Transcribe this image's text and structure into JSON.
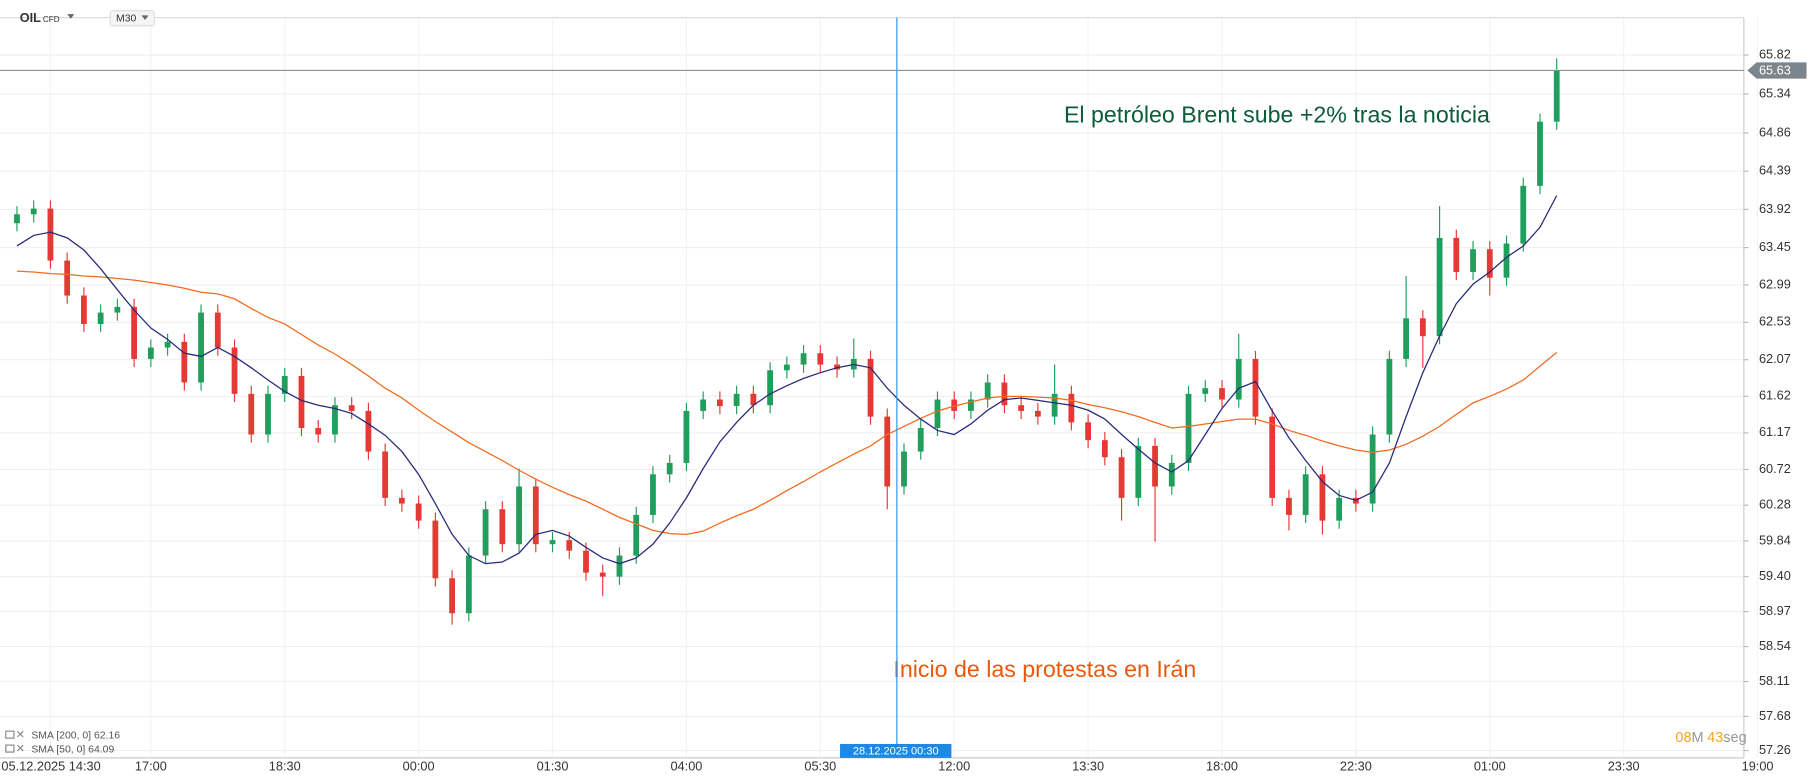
{
  "chart_data": {
    "type": "candlestick",
    "symbol": "OIL",
    "instrument_type": "CFD",
    "timeframe": "M30",
    "categories": [
      null,
      null,
      "05.12.2025 14:30",
      null,
      null,
      null,
      null,
      null,
      "17:00",
      null,
      null,
      null,
      null,
      null,
      null,
      null,
      "18:30",
      null,
      null,
      null,
      null,
      null,
      null,
      null,
      "00:00",
      null,
      null,
      null,
      null,
      null,
      null,
      null,
      "01:30",
      null,
      null,
      null,
      null,
      null,
      null,
      null,
      "04:00",
      null,
      null,
      null,
      null,
      null,
      null,
      null,
      "05:30",
      null,
      null,
      null,
      null,
      null,
      null,
      null,
      "12:00",
      null,
      null,
      null,
      null,
      null,
      null,
      null,
      "13:30",
      null,
      null,
      null,
      null,
      null,
      null,
      null,
      "18:00",
      null,
      null,
      null,
      null,
      null,
      null,
      null,
      "22:30",
      null,
      null,
      null,
      null,
      null,
      null,
      null,
      "01:00",
      null,
      null,
      null,
      null,
      null,
      null,
      null,
      "23:30",
      null,
      null,
      null,
      null,
      null,
      null,
      null,
      "19:00"
    ],
    "open": [
      63.75,
      63.86,
      63.93,
      63.29,
      62.86,
      62.51,
      62.65,
      62.72,
      62.08,
      62.22,
      62.29,
      61.79,
      62.65,
      62.22,
      61.65,
      61.15,
      61.65,
      61.87,
      61.23,
      61.15,
      61.51,
      61.44,
      60.94,
      60.37,
      60.3,
      60.09,
      59.38,
      58.95,
      59.66,
      60.23,
      59.8,
      60.51,
      59.8,
      59.85,
      59.72,
      59.45,
      59.4,
      59.66,
      60.16,
      60.66,
      60.8,
      61.44,
      61.58,
      61.5,
      61.65,
      61.51,
      61.94,
      62.01,
      62.15,
      62.01,
      61.95,
      62.08,
      61.37,
      60.51,
      60.94,
      61.23,
      61.58,
      61.44,
      61.58,
      61.79,
      61.51,
      61.44,
      61.37,
      61.65,
      61.3,
      61.08,
      60.87,
      60.37,
      61.01,
      60.51,
      60.8,
      61.65,
      61.72,
      61.58,
      62.08,
      61.37,
      60.37,
      60.16,
      60.66,
      60.09,
      60.37,
      60.3,
      61.15,
      62.08,
      62.58,
      62.36,
      63.57,
      63.15,
      63.43,
      63.08,
      63.5,
      64.21,
      65.0,
      null,
      null,
      null,
      null,
      null,
      null,
      null,
      null,
      null,
      null,
      null,
      null
    ],
    "high": [
      63.96,
      64.03,
      64.03,
      63.39,
      62.96,
      62.75,
      62.82,
      62.82,
      62.32,
      62.39,
      62.39,
      62.75,
      62.75,
      62.32,
      61.75,
      61.75,
      61.97,
      61.97,
      61.33,
      61.61,
      61.61,
      61.54,
      61.04,
      60.47,
      60.4,
      60.19,
      59.48,
      59.76,
      60.33,
      60.33,
      60.73,
      60.61,
      59.95,
      59.95,
      59.82,
      59.55,
      59.76,
      60.26,
      60.76,
      60.9,
      61.54,
      61.68,
      61.68,
      61.75,
      61.75,
      62.04,
      62.11,
      62.25,
      62.25,
      62.11,
      62.33,
      62.18,
      61.47,
      61.04,
      61.33,
      61.68,
      61.68,
      61.68,
      61.89,
      61.89,
      61.61,
      61.54,
      62.01,
      61.75,
      61.4,
      61.18,
      60.97,
      61.11,
      61.11,
      60.9,
      61.75,
      61.82,
      61.82,
      62.39,
      62.18,
      61.47,
      60.47,
      60.76,
      60.76,
      60.47,
      60.47,
      61.25,
      62.18,
      63.1,
      62.68,
      63.96,
      63.67,
      63.53,
      63.53,
      63.6,
      64.31,
      65.1,
      65.78,
      null,
      null,
      null,
      null,
      null,
      null,
      null,
      null,
      null,
      null,
      null,
      null
    ],
    "low": [
      63.65,
      63.76,
      63.19,
      62.76,
      62.41,
      62.41,
      62.55,
      61.98,
      61.98,
      62.12,
      61.69,
      61.69,
      62.12,
      61.55,
      61.05,
      61.05,
      61.55,
      61.13,
      61.05,
      61.05,
      61.34,
      60.84,
      60.27,
      60.2,
      59.99,
      59.28,
      58.81,
      58.85,
      59.56,
      59.7,
      59.7,
      59.7,
      59.7,
      59.62,
      59.35,
      59.16,
      59.3,
      59.56,
      60.06,
      60.56,
      60.7,
      61.34,
      61.4,
      61.4,
      61.41,
      61.41,
      61.84,
      61.91,
      61.91,
      61.85,
      61.85,
      61.27,
      60.23,
      60.41,
      60.84,
      61.13,
      61.34,
      61.34,
      61.48,
      61.41,
      61.34,
      61.27,
      61.27,
      61.2,
      60.98,
      60.77,
      60.09,
      60.27,
      59.83,
      60.41,
      60.7,
      61.55,
      61.48,
      61.48,
      61.27,
      60.27,
      59.97,
      60.06,
      59.92,
      59.99,
      60.2,
      60.2,
      61.05,
      61.98,
      61.97,
      62.26,
      63.05,
      63.05,
      62.86,
      62.98,
      63.4,
      64.11,
      64.9,
      null,
      null,
      null,
      null,
      null,
      null,
      null,
      null,
      null,
      null,
      null,
      null
    ],
    "close": [
      63.86,
      63.93,
      63.29,
      62.86,
      62.51,
      62.65,
      62.72,
      62.08,
      62.22,
      62.29,
      61.79,
      62.65,
      62.22,
      61.65,
      61.15,
      61.65,
      61.87,
      61.23,
      61.15,
      61.51,
      61.44,
      60.94,
      60.37,
      60.3,
      60.09,
      59.38,
      58.95,
      59.66,
      60.23,
      59.8,
      60.51,
      59.8,
      59.85,
      59.72,
      59.45,
      59.4,
      59.66,
      60.16,
      60.66,
      60.8,
      61.44,
      61.58,
      61.5,
      61.65,
      61.51,
      61.94,
      62.01,
      62.15,
      62.01,
      61.95,
      62.08,
      61.37,
      60.51,
      60.94,
      61.23,
      61.58,
      61.44,
      61.58,
      61.79,
      61.51,
      61.44,
      61.37,
      61.65,
      61.3,
      61.08,
      60.87,
      60.37,
      61.01,
      60.51,
      60.8,
      61.65,
      61.72,
      61.58,
      62.08,
      61.37,
      60.37,
      60.16,
      60.66,
      60.09,
      60.37,
      60.3,
      61.15,
      62.08,
      62.58,
      62.36,
      63.57,
      63.15,
      63.43,
      63.08,
      63.5,
      64.21,
      65.0,
      65.63,
      null,
      null,
      null,
      null,
      null,
      null,
      null,
      null,
      null,
      null,
      null,
      null
    ],
    "up_color": "#1f9e5c",
    "down_color": "#e53935",
    "series": [
      {
        "name": "SMA [200, 0] 62.16",
        "color": "#f26b21",
        "values": [
          63.16,
          63.15,
          63.13,
          63.12,
          63.1,
          63.09,
          63.07,
          63.05,
          63.02,
          62.99,
          62.95,
          62.9,
          62.88,
          62.82,
          62.7,
          62.59,
          62.51,
          62.38,
          62.25,
          62.14,
          62.01,
          61.87,
          61.72,
          61.6,
          61.45,
          61.31,
          61.18,
          61.05,
          60.94,
          60.83,
          60.71,
          60.6,
          60.5,
          60.41,
          60.33,
          60.23,
          60.13,
          60.05,
          59.97,
          59.93,
          59.92,
          59.96,
          60.06,
          60.15,
          60.23,
          60.34,
          60.46,
          60.57,
          60.69,
          60.8,
          60.91,
          61.01,
          61.15,
          61.25,
          61.35,
          61.44,
          61.5,
          61.55,
          61.6,
          61.62,
          61.62,
          61.61,
          61.6,
          61.57,
          61.52,
          61.48,
          61.43,
          61.37,
          61.3,
          61.23,
          61.25,
          61.28,
          61.31,
          61.34,
          61.34,
          61.28,
          61.2,
          61.14,
          61.07,
          61.01,
          60.96,
          60.93,
          60.96,
          61.03,
          61.13,
          61.25,
          61.4,
          61.54,
          61.62,
          61.71,
          61.82,
          61.99,
          62.16,
          null,
          null,
          null,
          null,
          null,
          null,
          null,
          null,
          null,
          null,
          null,
          null
        ]
      },
      {
        "name": "SMA [50, 0] 64.09",
        "color": "#2a2a7a",
        "values": [
          63.47,
          63.6,
          63.64,
          63.57,
          63.42,
          63.19,
          62.93,
          62.68,
          62.46,
          62.32,
          62.15,
          62.11,
          62.22,
          62.11,
          61.97,
          61.82,
          61.68,
          61.57,
          61.51,
          61.47,
          61.41,
          61.28,
          61.14,
          60.94,
          60.66,
          60.3,
          59.92,
          59.66,
          59.56,
          59.58,
          59.69,
          59.92,
          59.97,
          59.9,
          59.76,
          59.63,
          59.56,
          59.63,
          59.8,
          60.06,
          60.37,
          60.73,
          61.06,
          61.3,
          61.51,
          61.65,
          61.75,
          61.84,
          61.91,
          61.97,
          62.01,
          61.97,
          61.72,
          61.51,
          61.34,
          61.2,
          61.15,
          61.28,
          61.45,
          61.58,
          61.6,
          61.57,
          61.54,
          61.51,
          61.45,
          61.34,
          61.15,
          60.97,
          60.8,
          60.69,
          60.83,
          61.15,
          61.47,
          61.72,
          61.8,
          61.44,
          61.11,
          60.83,
          60.57,
          60.4,
          60.34,
          60.44,
          60.8,
          61.37,
          61.91,
          62.36,
          62.76,
          63.0,
          63.15,
          63.33,
          63.47,
          63.7,
          64.09,
          null,
          null,
          null,
          null,
          null,
          null,
          null,
          null,
          null,
          null,
          null,
          null
        ]
      }
    ],
    "ylim": [
      57.17,
      66.28
    ],
    "yticks": [
      65.82,
      65.34,
      64.86,
      64.39,
      63.92,
      63.45,
      62.99,
      62.53,
      62.07,
      61.62,
      61.17,
      60.72,
      60.28,
      59.84,
      {
        "value": 59.4,
        "label": "59.40"
      },
      58.97,
      58.54,
      58.11,
      57.68,
      57.26
    ],
    "grid": true,
    "last_price": 65.63,
    "crosshair_label": "28.12.2025 00:30",
    "annotations": [
      {
        "text": "El petróleo Brent sube +2% tras la noticia",
        "color": "#0b5c3a"
      },
      {
        "text": "Inicio de las protestas en Irán",
        "color": "#e8590c"
      }
    ],
    "timer": {
      "minutes": "08",
      "minutes_unit": "M",
      "seconds": "43",
      "seconds_unit": "seg"
    }
  }
}
